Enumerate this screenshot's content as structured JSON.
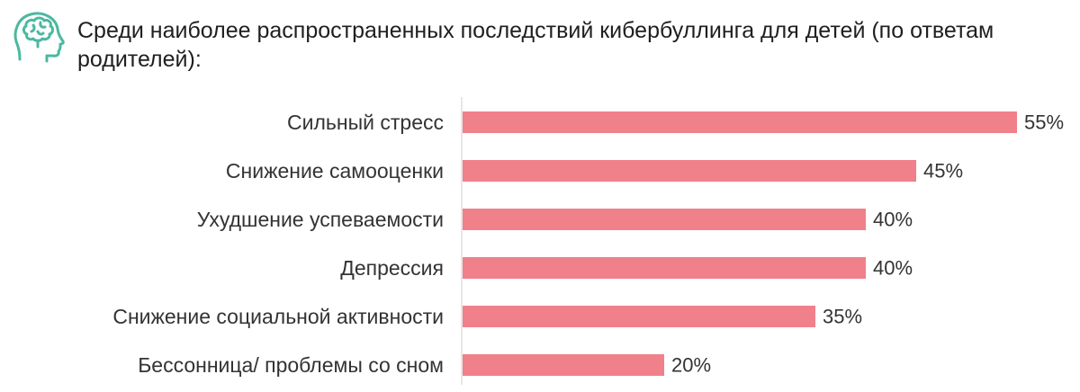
{
  "header": {
    "icon": "brain-head-icon",
    "title": "Среди наиболее распространенных последствий кибербуллинга для детей (по ответам родителей):"
  },
  "colors": {
    "bar": "#f0808a",
    "icon": "#4cb8a0",
    "axis": "#cccccc"
  },
  "chart_data": {
    "type": "bar",
    "orientation": "horizontal",
    "categories": [
      "Сильный стресс",
      "Снижение самооценки",
      "Ухудшение успеваемости",
      "Депрессия",
      "Снижение социальной активности",
      "Бессонница/ проблемы со сном"
    ],
    "values": [
      55,
      45,
      40,
      40,
      35,
      20
    ],
    "value_labels": [
      "55%",
      "45%",
      "40%",
      "40%",
      "35%",
      "20%"
    ],
    "unit": "%",
    "xlim": [
      0,
      55
    ],
    "grid": false,
    "legend": "none"
  }
}
